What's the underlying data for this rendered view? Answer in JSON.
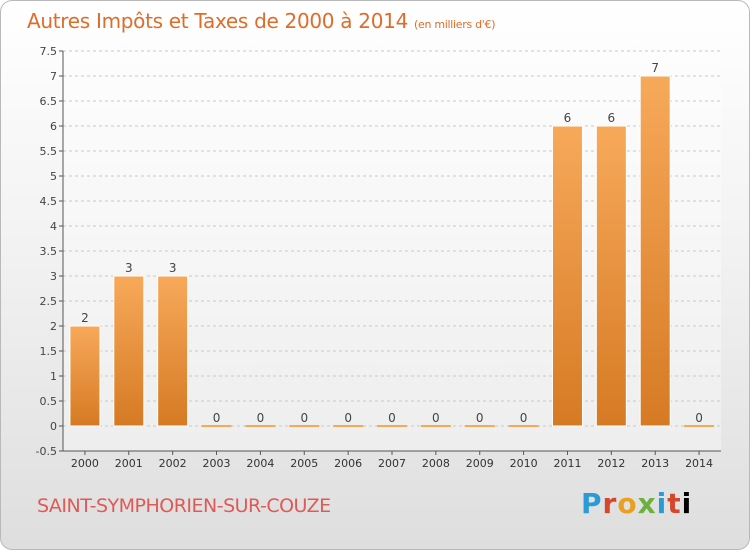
{
  "header": {
    "title": "Autres Impôts et Taxes de 2000 à 2014",
    "subtitle": "(en milliers d'€)"
  },
  "footer": {
    "town": "SAINT-SYMPHORIEN-SUR-COUZE",
    "logo_letters": [
      "P",
      "r",
      "o",
      "x",
      "i",
      "t",
      "i"
    ]
  },
  "colors": {
    "title": "#de6c2a",
    "town": "#de5a57",
    "bar_light": "#f7a95a",
    "bar_dark": "#d67a24",
    "grid": "#c8c8c8"
  },
  "chart_data": {
    "type": "bar",
    "categories": [
      "2000",
      "2001",
      "2002",
      "2003",
      "2004",
      "2005",
      "2006",
      "2007",
      "2008",
      "2009",
      "2010",
      "2011",
      "2012",
      "2013",
      "2014"
    ],
    "values": [
      2,
      3,
      3,
      0,
      0,
      0,
      0,
      0,
      0,
      0,
      0,
      6,
      6,
      7,
      0
    ],
    "data_labels": [
      "2",
      "3",
      "3",
      "0",
      "0",
      "0",
      "0",
      "0",
      "0",
      "0",
      "0",
      "6",
      "6",
      "7",
      "0"
    ],
    "ylim": [
      -0.5,
      7.5
    ],
    "yticks": [
      "-0.5",
      "0",
      "0.5",
      "1",
      "1.5",
      "2",
      "2.5",
      "3",
      "3.5",
      "4",
      "4.5",
      "5",
      "5.5",
      "6",
      "6.5",
      "7",
      "7.5"
    ],
    "ytick_values": [
      -0.5,
      0,
      0.5,
      1,
      1.5,
      2,
      2.5,
      3,
      3.5,
      4,
      4.5,
      5,
      5.5,
      6,
      6.5,
      7,
      7.5
    ],
    "grid": true
  }
}
